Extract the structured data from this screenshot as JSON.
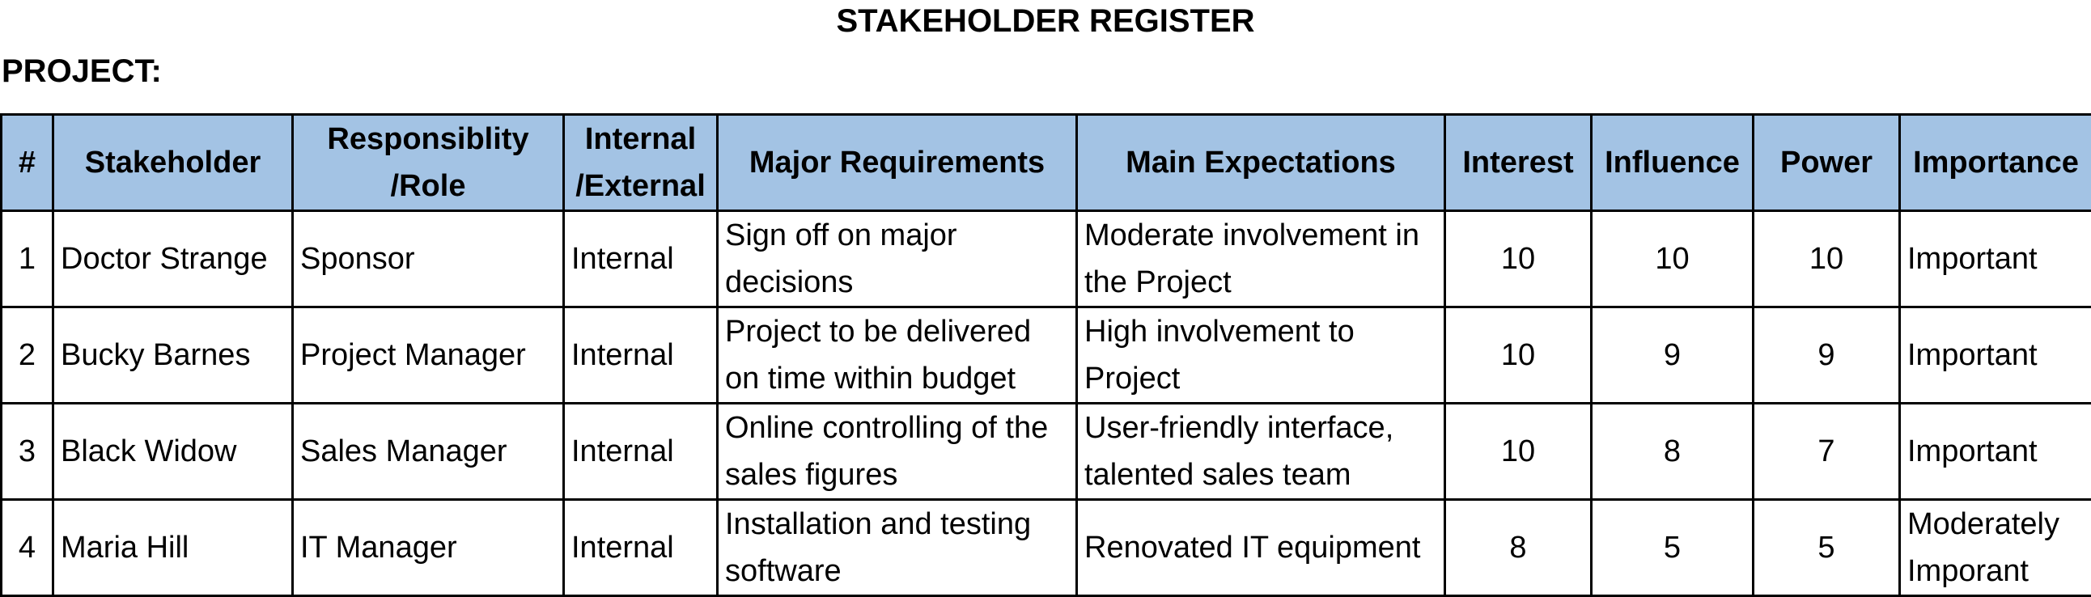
{
  "title": "STAKEHOLDER REGISTER",
  "project_label": "PROJECT:",
  "header_color": "#a3c3e4",
  "columns": [
    "#",
    "Stakeholder",
    "Responsiblity /Role",
    "Internal /External",
    "Major Requirements",
    "Main Expectations",
    "Interest",
    "Influence",
    "Power",
    "Importance"
  ],
  "rows": [
    {
      "num": "1",
      "stakeholder": "Doctor Strange",
      "role": "Sponsor",
      "internal_external": "Internal",
      "requirements": "Sign off on major decisions",
      "expectations": "Moderate involvement in the Project",
      "interest": "10",
      "influence": "10",
      "power": "10",
      "importance": "Important"
    },
    {
      "num": "2",
      "stakeholder": "Bucky Barnes",
      "role": "Project Manager",
      "internal_external": "Internal",
      "requirements": "Project to be delivered on time within budget",
      "expectations": "High involvement to Project",
      "interest": "10",
      "influence": "9",
      "power": "9",
      "importance": "Important"
    },
    {
      "num": "3",
      "stakeholder": "Black Widow",
      "role": "Sales Manager",
      "internal_external": "Internal",
      "requirements": "Online controlling of the sales figures",
      "expectations": "User-friendly interface, talented sales team",
      "interest": "10",
      "influence": "8",
      "power": "7",
      "importance": "Important"
    },
    {
      "num": "4",
      "stakeholder": "Maria Hill",
      "role": "IT Manager",
      "internal_external": "Internal",
      "requirements": "Installation and testing software",
      "expectations": "Renovated IT equipment",
      "interest": "8",
      "influence": "5",
      "power": "5",
      "importance": "Moderately Imporant"
    }
  ]
}
